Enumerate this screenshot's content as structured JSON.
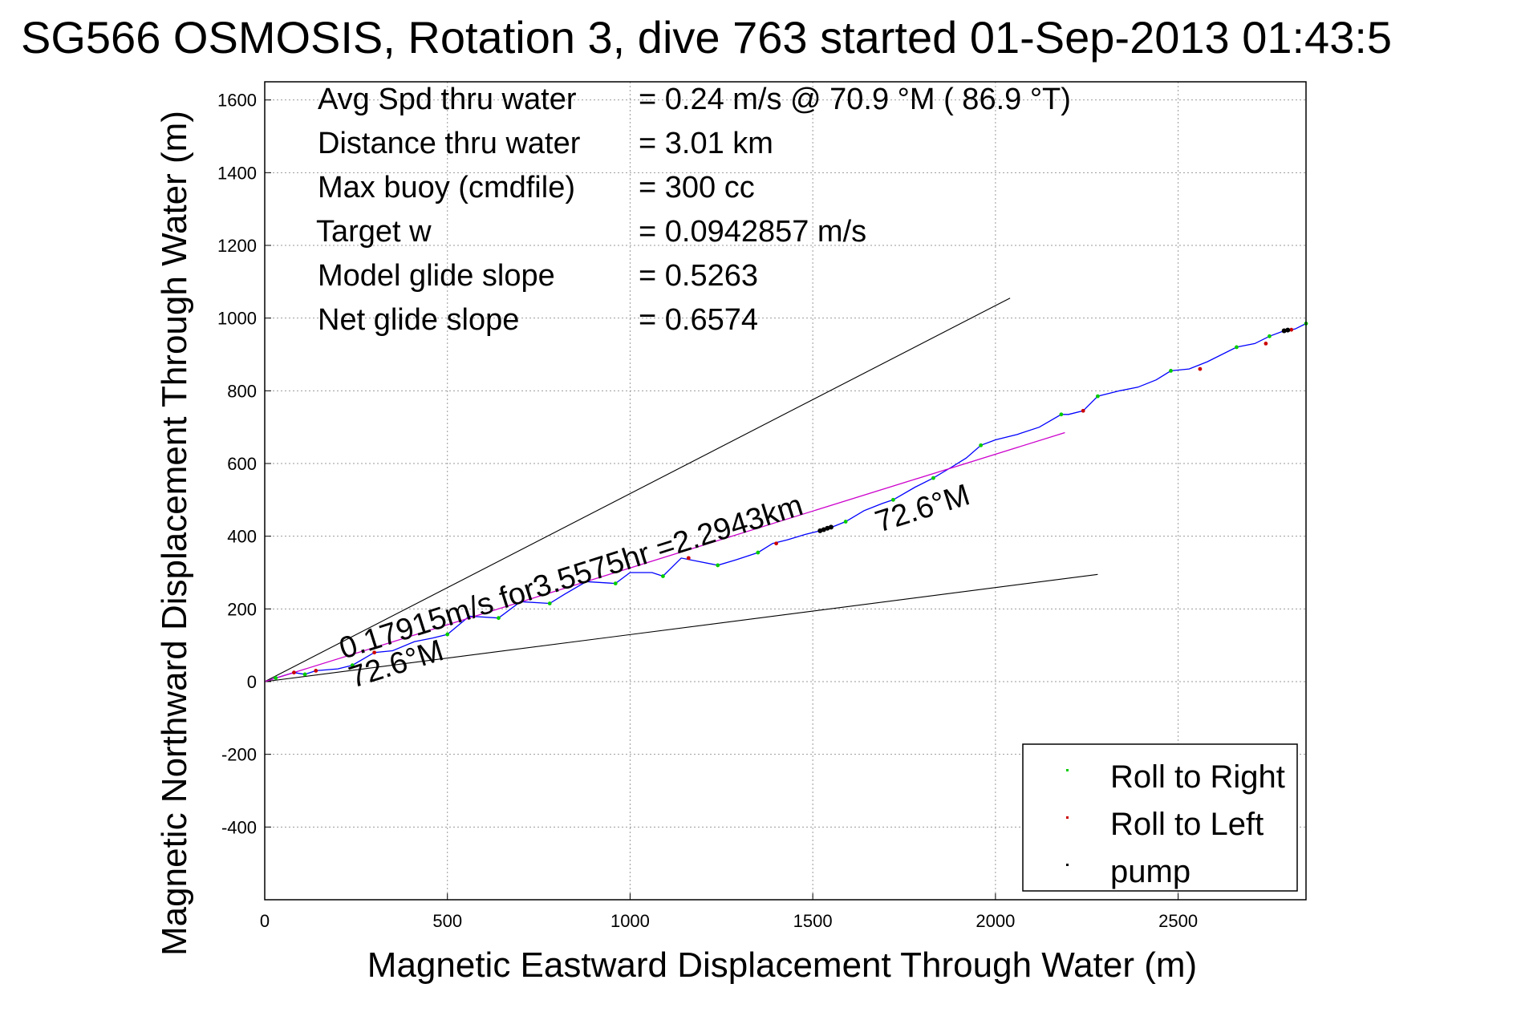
{
  "chart_data": {
    "type": "line",
    "title": "SG566 OSMOSIS, Rotation 3, dive 763 started 01-Sep-2013 01:43:5",
    "xlabel": "Magnetic Eastward Displacement Through Water (m)",
    "ylabel": "Magnetic Northward Displacement Through Water (m)",
    "xlim": [
      0,
      2850
    ],
    "ylim": [
      -600,
      1650
    ],
    "grid": true,
    "xticks": [
      0,
      500,
      1000,
      1500,
      2000,
      2500
    ],
    "yticks": [
      -400,
      -200,
      0,
      200,
      400,
      600,
      800,
      1000,
      1200,
      1400,
      1600
    ],
    "stats": [
      {
        "label": "Avg Spd thru water",
        "value": "=  0.24 m/s @  70.9 °M ( 86.9 °T)"
      },
      {
        "label": "Distance thru water",
        "value": "=  3.01 km"
      },
      {
        "label": "Max buoy (cmdfile)",
        "value": "= 300 cc"
      },
      {
        "label": "Target w",
        "value": "= 0.0942857 m/s"
      },
      {
        "label": "Model glide slope",
        "value": "= 0.5263"
      },
      {
        "label": "Net glide slope",
        "value": "= 0.6574"
      }
    ],
    "annotations": {
      "current": "0.17915m/s for3.5575hr =2.2943km",
      "heading_start": "72.6°M",
      "heading_mid": "72.6°M"
    },
    "legend": {
      "placement": "bottom-right",
      "entries": [
        {
          "name": "Roll to Right",
          "color": "#00cc00"
        },
        {
          "name": "Roll to Left",
          "color": "#cc0000"
        },
        {
          "name": "pump",
          "color": "#000000"
        }
      ]
    },
    "colors": {
      "track": "#0000ff",
      "current_line": "#cc00cc",
      "bounds": "#000000"
    },
    "series": [
      {
        "name": "track",
        "x": [
          0,
          30,
          80,
          110,
          140,
          200,
          240,
          300,
          350,
          410,
          460,
          500,
          560,
          640,
          700,
          780,
          820,
          880,
          960,
          1000,
          1060,
          1090,
          1140,
          1240,
          1290,
          1350,
          1390,
          1430,
          1480,
          1540,
          1590,
          1640,
          1690,
          1720,
          1780,
          1830,
          1880,
          1920,
          1960,
          2000,
          2060,
          2120,
          2180,
          2200,
          2240,
          2280,
          2340,
          2390,
          2440,
          2480,
          2530,
          2580,
          2660,
          2710,
          2750,
          2790,
          2820,
          2850
        ],
        "y": [
          0,
          10,
          25,
          20,
          30,
          35,
          45,
          80,
          85,
          110,
          120,
          130,
          180,
          175,
          220,
          215,
          240,
          275,
          270,
          300,
          300,
          290,
          340,
          320,
          335,
          355,
          380,
          390,
          405,
          420,
          440,
          470,
          490,
          500,
          535,
          560,
          590,
          615,
          650,
          665,
          680,
          700,
          735,
          735,
          745,
          785,
          800,
          810,
          830,
          855,
          860,
          880,
          920,
          930,
          950,
          965,
          970,
          985
        ]
      },
      {
        "name": "bound_upper",
        "x": [
          0,
          2040
        ],
        "y": [
          0,
          1055
        ]
      },
      {
        "name": "bound_lower",
        "x": [
          0,
          2280
        ],
        "y": [
          0,
          295
        ]
      },
      {
        "name": "current",
        "x": [
          0,
          2190
        ],
        "y": [
          0,
          685
        ]
      }
    ],
    "markers": {
      "roll_right": {
        "x": [
          30,
          110,
          240,
          500,
          640,
          780,
          960,
          1090,
          1240,
          1350,
          1590,
          1720,
          1830,
          1960,
          2180,
          2280,
          2480,
          2660,
          2750,
          2850
        ],
        "y": [
          10,
          20,
          45,
          130,
          175,
          215,
          270,
          290,
          320,
          355,
          440,
          500,
          560,
          650,
          735,
          785,
          855,
          920,
          950,
          985
        ]
      },
      "roll_left": {
        "x": [
          80,
          140,
          300,
          1160,
          1400,
          2240,
          2560,
          2740,
          2810
        ],
        "y": [
          25,
          30,
          80,
          340,
          380,
          745,
          860,
          930,
          968
        ]
      },
      "pump": {
        "x": [
          1520,
          1530,
          1540,
          1550,
          2790,
          2800
        ],
        "y": [
          415,
          418,
          422,
          425,
          965,
          967
        ]
      }
    }
  }
}
